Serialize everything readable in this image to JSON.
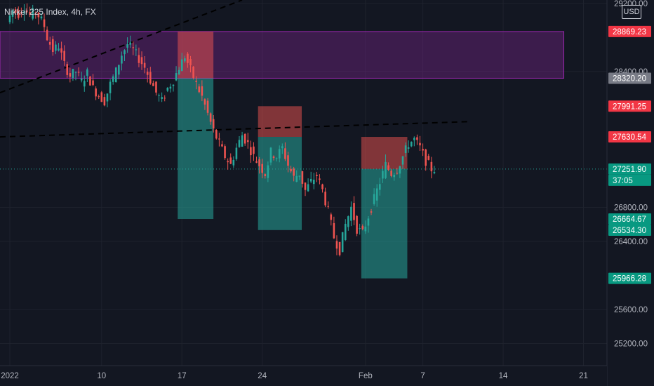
{
  "header": {
    "title": "Nikkei 225 Index, 4h, FX",
    "currency": "USD"
  },
  "colors": {
    "background": "#131722",
    "up": "#26a69a",
    "down": "#ef5350",
    "zone": "#9c27b0",
    "target": "#26a69a",
    "stop": "#ef5350",
    "text": "#d1d4dc"
  },
  "chart_data": {
    "type": "candlestick",
    "symbol": "Nikkei 225 Index",
    "interval": "4h",
    "source": "FX",
    "y_axis": {
      "ticks": [
        29200,
        28400,
        26800,
        26400,
        25600,
        25200
      ],
      "tick_labels": [
        "29200.00",
        "28400.00",
        "26800.00",
        "26400.00",
        "25600.00",
        "25200.00"
      ],
      "range": [
        24940,
        29240
      ]
    },
    "x_axis": {
      "labels": [
        "2022",
        "10",
        "17",
        "24",
        "Feb",
        "7",
        "14",
        "21"
      ]
    },
    "price_labels": [
      {
        "text": "28869.23",
        "value": 28869.23,
        "kind": "stop"
      },
      {
        "text": "28320.20",
        "value": 28320.2,
        "kind": "neutral"
      },
      {
        "text": "27991.25",
        "value": 27991.25,
        "kind": "stop"
      },
      {
        "text": "27630.54",
        "value": 27630.54,
        "kind": "stop"
      },
      {
        "text": "27251.90",
        "value": 27251.9,
        "kind": "current"
      },
      {
        "text": "37:05",
        "value": 27251.9,
        "kind": "countdown"
      },
      {
        "text": "26664.67",
        "value": 26664.67,
        "kind": "target"
      },
      {
        "text": "26534.30",
        "value": 26534.3,
        "kind": "target"
      },
      {
        "text": "25966.28",
        "value": 25966.28,
        "kind": "target"
      }
    ],
    "resistance_zone": {
      "from": 28320.2,
      "to": 28869.23,
      "x_start": "2022",
      "x_end": "21"
    },
    "positions": [
      {
        "type": "short",
        "entry": 28320.2,
        "stop": 28869.23,
        "target": 26664.67,
        "start": "17",
        "span_days": 2.5
      },
      {
        "type": "short",
        "entry": 27630.54,
        "stop": 27991.25,
        "target": 26534.3,
        "start": "24",
        "span_days": 3.2
      },
      {
        "type": "short",
        "entry": 27251.9,
        "stop": 27630.54,
        "target": 25966.28,
        "start": "Feb",
        "span_days": 3.4
      }
    ],
    "path": [
      [
        0,
        28980
      ],
      [
        0.5,
        29120
      ],
      [
        1,
        29080
      ],
      [
        1.5,
        29160
      ],
      [
        2,
        29060
      ],
      [
        2.5,
        29110
      ],
      [
        3,
        29000
      ],
      [
        3.3,
        28920
      ],
      [
        3.5,
        28800
      ],
      [
        4,
        28650
      ],
      [
        4.5,
        28700
      ],
      [
        5,
        28480
      ],
      [
        5.5,
        28350
      ],
      [
        6,
        28400
      ],
      [
        6.5,
        28280
      ],
      [
        7,
        28380
      ],
      [
        7.5,
        28200
      ],
      [
        8,
        28120
      ],
      [
        8.5,
        28050
      ],
      [
        9,
        28250
      ],
      [
        9.5,
        28400
      ],
      [
        10,
        28600
      ],
      [
        10.5,
        28720
      ],
      [
        11,
        28650
      ],
      [
        11.5,
        28550
      ],
      [
        12,
        28450
      ],
      [
        12.5,
        28300
      ],
      [
        13,
        28150
      ],
      [
        13.5,
        28050
      ],
      [
        14,
        28200
      ],
      [
        14.5,
        28300
      ],
      [
        15,
        28450
      ],
      [
        15.5,
        28580
      ],
      [
        16,
        28420
      ],
      [
        16.5,
        28250
      ],
      [
        17,
        28100
      ],
      [
        17.5,
        27900
      ],
      [
        18,
        27700
      ],
      [
        18.5,
        27550
      ],
      [
        19,
        27400
      ],
      [
        19.5,
        27300
      ],
      [
        20,
        27500
      ],
      [
        20.5,
        27650
      ],
      [
        21,
        27550
      ],
      [
        21.5,
        27400
      ],
      [
        22,
        27300
      ],
      [
        22.5,
        27200
      ],
      [
        23,
        27450
      ],
      [
        23.5,
        27400
      ],
      [
        24,
        27500
      ],
      [
        24.5,
        27300
      ],
      [
        25,
        27150
      ],
      [
        25.5,
        27200
      ],
      [
        26,
        27000
      ],
      [
        26.5,
        27100
      ],
      [
        27,
        27180
      ],
      [
        27.5,
        27000
      ],
      [
        28,
        26750
      ],
      [
        28.5,
        26450
      ],
      [
        29,
        26300
      ],
      [
        29.5,
        26600
      ],
      [
        30,
        26800
      ],
      [
        30.5,
        26550
      ],
      [
        31,
        26500
      ],
      [
        31.5,
        26700
      ],
      [
        32,
        26900
      ],
      [
        32.5,
        27100
      ],
      [
        33,
        27300
      ],
      [
        33.5,
        27200
      ],
      [
        34,
        27250
      ],
      [
        34.5,
        27400
      ],
      [
        35,
        27550
      ],
      [
        35.5,
        27600
      ],
      [
        36,
        27500
      ],
      [
        36.5,
        27350
      ],
      [
        37,
        27251.9
      ]
    ]
  }
}
